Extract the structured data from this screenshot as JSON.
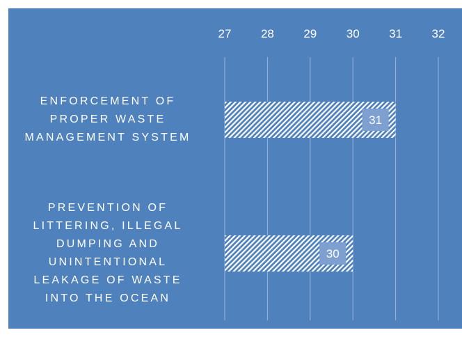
{
  "chart_data": {
    "type": "bar",
    "orientation": "horizontal",
    "categories": [
      "ENFORCEMENT OF PROPER WASTE MANAGEMENT SYSTEM",
      "PREVENTION OF LITTERING, ILLEGAL DUMPING AND UNINTENTIONAL LEAKAGE OF WASTE INTO THE OCEAN"
    ],
    "category_lines": [
      [
        "ENFORCEMENT OF",
        "PROPER WASTE",
        "MANAGEMENT SYSTEM"
      ],
      [
        "PREVENTION OF",
        "LITTERING, ILLEGAL",
        "DUMPING AND",
        "UNINTENTIONAL",
        "LEAKAGE OF WASTE",
        "INTO THE OCEAN"
      ]
    ],
    "values": [
      31,
      30
    ],
    "data_labels": [
      "31",
      "30"
    ],
    "xlim": [
      27,
      32
    ],
    "x_ticks": [
      "27",
      "28",
      "29",
      "30",
      "31",
      "32"
    ],
    "axis_position": "top",
    "grid": true,
    "legend": "none",
    "colors": {
      "background": "#4f81bd",
      "bar_hatch": "#ffffff",
      "bar_base": "#4f81bd",
      "label_box": "#7ea0d0",
      "grid": "#9bb5da",
      "text": "#ffffff"
    }
  }
}
